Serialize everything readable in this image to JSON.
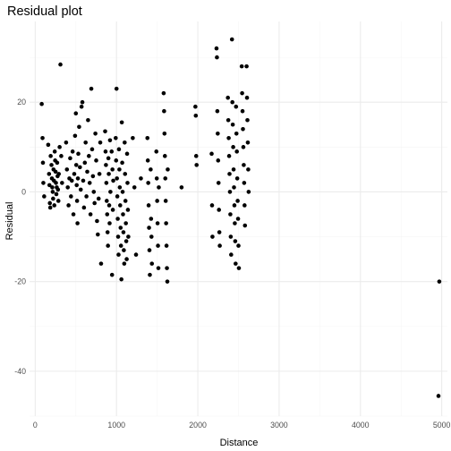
{
  "chart_data": {
    "type": "scatter",
    "title": "Residual plot",
    "xlabel": "Distance",
    "ylabel": "Residual",
    "xlim": [
      -70,
      5070
    ],
    "ylim": [
      -50,
      38
    ],
    "xticks": [
      0,
      1000,
      2000,
      3000,
      4000,
      5000
    ],
    "yticks": [
      -40,
      -20,
      0,
      20
    ],
    "xtick_labels": [
      "0",
      "1000",
      "2000",
      "3000",
      "4000",
      "5000"
    ],
    "ytick_labels": [
      "-40",
      "-20",
      "0",
      "20"
    ],
    "grid": true,
    "legend": "none",
    "point_color": "#000000",
    "series": [
      {
        "points": [
          [
            80,
            19.6
          ],
          [
            90,
            12
          ],
          [
            95,
            6.5
          ],
          [
            100,
            2
          ],
          [
            110,
            -1
          ],
          [
            160,
            10.5
          ],
          [
            170,
            4
          ],
          [
            175,
            1.5
          ],
          [
            180,
            -2.5
          ],
          [
            185,
            -3.5
          ],
          [
            190,
            8
          ],
          [
            200,
            6
          ],
          [
            205,
            3
          ],
          [
            210,
            1
          ],
          [
            215,
            0
          ],
          [
            220,
            -1.5
          ],
          [
            225,
            5
          ],
          [
            230,
            2.5
          ],
          [
            235,
            -3
          ],
          [
            240,
            9
          ],
          [
            245,
            7
          ],
          [
            250,
            4.5
          ],
          [
            255,
            2
          ],
          [
            260,
            -0.5
          ],
          [
            265,
            1
          ],
          [
            270,
            6.5
          ],
          [
            275,
            3.5
          ],
          [
            280,
            0.5
          ],
          [
            285,
            -2
          ],
          [
            290,
            4
          ],
          [
            300,
            10
          ],
          [
            310,
            28.4
          ],
          [
            320,
            8
          ],
          [
            330,
            2
          ],
          [
            380,
            11
          ],
          [
            390,
            5
          ],
          [
            400,
            1
          ],
          [
            410,
            -3
          ],
          [
            420,
            3
          ],
          [
            430,
            7.5
          ],
          [
            440,
            -1
          ],
          [
            450,
            2.5
          ],
          [
            460,
            9
          ],
          [
            470,
            -5
          ],
          [
            480,
            4
          ],
          [
            490,
            12.5
          ],
          [
            500,
            17.5
          ],
          [
            505,
            6
          ],
          [
            510,
            1.5
          ],
          [
            515,
            -2
          ],
          [
            520,
            -7
          ],
          [
            525,
            3
          ],
          [
            530,
            8.5
          ],
          [
            540,
            14.5
          ],
          [
            550,
            5.5
          ],
          [
            560,
            0.5
          ],
          [
            570,
            19
          ],
          [
            580,
            20
          ],
          [
            590,
            2.5
          ],
          [
            600,
            -3.5
          ],
          [
            610,
            6.5
          ],
          [
            620,
            11
          ],
          [
            630,
            -1
          ],
          [
            640,
            4.5
          ],
          [
            650,
            16
          ],
          [
            660,
            8
          ],
          [
            670,
            2
          ],
          [
            680,
            -5
          ],
          [
            690,
            23
          ],
          [
            700,
            9.5
          ],
          [
            710,
            3.5
          ],
          [
            720,
            0
          ],
          [
            730,
            -2.5
          ],
          [
            740,
            13
          ],
          [
            750,
            7
          ],
          [
            760,
            -6.5
          ],
          [
            770,
            -9.5
          ],
          [
            780,
            -1.5
          ],
          [
            790,
            4
          ],
          [
            800,
            11
          ],
          [
            810,
            -16
          ],
          [
            860,
            13.5
          ],
          [
            865,
            9
          ],
          [
            870,
            6
          ],
          [
            875,
            2
          ],
          [
            880,
            -2
          ],
          [
            885,
            -5
          ],
          [
            890,
            -9
          ],
          [
            895,
            -12
          ],
          [
            900,
            7.5
          ],
          [
            905,
            4
          ],
          [
            910,
            -3
          ],
          [
            915,
            -7
          ],
          [
            920,
            11.5
          ],
          [
            925,
            0
          ],
          [
            940,
            9
          ],
          [
            945,
            -18.5
          ],
          [
            950,
            5
          ],
          [
            955,
            -4
          ],
          [
            960,
            2.5
          ],
          [
            990,
            12
          ],
          [
            995,
            7
          ],
          [
            1000,
            23
          ],
          [
            1005,
            3
          ],
          [
            1010,
            -1
          ],
          [
            1015,
            -6
          ],
          [
            1020,
            -10
          ],
          [
            1025,
            -14
          ],
          [
            1030,
            9.5
          ],
          [
            1035,
            5
          ],
          [
            1040,
            1
          ],
          [
            1045,
            -3
          ],
          [
            1050,
            -8
          ],
          [
            1055,
            -12
          ],
          [
            1060,
            -19.5
          ],
          [
            1065,
            15.5
          ],
          [
            1070,
            6.5
          ],
          [
            1075,
            0
          ],
          [
            1080,
            -5
          ],
          [
            1085,
            -9
          ],
          [
            1090,
            -13
          ],
          [
            1095,
            -16
          ],
          [
            1100,
            11
          ],
          [
            1105,
            4
          ],
          [
            1110,
            -2
          ],
          [
            1115,
            -7
          ],
          [
            1120,
            -11
          ],
          [
            1125,
            -15
          ],
          [
            1130,
            8.5
          ],
          [
            1135,
            2
          ],
          [
            1140,
            -4
          ],
          [
            1145,
            -10
          ],
          [
            1200,
            12
          ],
          [
            1220,
            1
          ],
          [
            1240,
            -14
          ],
          [
            1300,
            3
          ],
          [
            1380,
            12
          ],
          [
            1385,
            7
          ],
          [
            1390,
            2
          ],
          [
            1395,
            -3
          ],
          [
            1400,
            -8
          ],
          [
            1405,
            -13
          ],
          [
            1410,
            -18.5
          ],
          [
            1420,
            5
          ],
          [
            1425,
            -6
          ],
          [
            1430,
            -10
          ],
          [
            1435,
            -16
          ],
          [
            1490,
            9
          ],
          [
            1495,
            3
          ],
          [
            1500,
            -2
          ],
          [
            1505,
            -7
          ],
          [
            1510,
            -12
          ],
          [
            1515,
            -17
          ],
          [
            1520,
            1
          ],
          [
            1580,
            22
          ],
          [
            1585,
            18
          ],
          [
            1590,
            13
          ],
          [
            1595,
            8
          ],
          [
            1600,
            3
          ],
          [
            1605,
            -2
          ],
          [
            1610,
            -7
          ],
          [
            1615,
            -12
          ],
          [
            1620,
            -17
          ],
          [
            1625,
            -20
          ],
          [
            1630,
            5
          ],
          [
            1800,
            1
          ],
          [
            1970,
            19
          ],
          [
            1975,
            17
          ],
          [
            1980,
            8
          ],
          [
            1985,
            6
          ],
          [
            2170,
            8.5
          ],
          [
            2175,
            -3
          ],
          [
            2180,
            -10
          ],
          [
            2230,
            32
          ],
          [
            2235,
            30
          ],
          [
            2240,
            18
          ],
          [
            2245,
            13
          ],
          [
            2250,
            7
          ],
          [
            2255,
            2
          ],
          [
            2260,
            -4
          ],
          [
            2265,
            -9
          ],
          [
            2270,
            -12
          ],
          [
            2370,
            21
          ],
          [
            2375,
            16
          ],
          [
            2380,
            12
          ],
          [
            2385,
            8
          ],
          [
            2390,
            4
          ],
          [
            2395,
            0
          ],
          [
            2400,
            -5
          ],
          [
            2405,
            -10
          ],
          [
            2410,
            -14
          ],
          [
            2420,
            34
          ],
          [
            2425,
            20
          ],
          [
            2430,
            15
          ],
          [
            2435,
            10
          ],
          [
            2440,
            5
          ],
          [
            2445,
            1
          ],
          [
            2450,
            -3
          ],
          [
            2455,
            -7
          ],
          [
            2460,
            -11
          ],
          [
            2465,
            -16
          ],
          [
            2470,
            19
          ],
          [
            2475,
            13
          ],
          [
            2480,
            9
          ],
          [
            2485,
            3
          ],
          [
            2490,
            -2
          ],
          [
            2495,
            -6
          ],
          [
            2500,
            -12
          ],
          [
            2505,
            -17
          ],
          [
            2540,
            28
          ],
          [
            2545,
            22
          ],
          [
            2550,
            18
          ],
          [
            2555,
            14
          ],
          [
            2560,
            10
          ],
          [
            2565,
            6
          ],
          [
            2570,
            2
          ],
          [
            2575,
            -3
          ],
          [
            2580,
            -7.5
          ],
          [
            2600,
            28
          ],
          [
            2605,
            21
          ],
          [
            2610,
            16
          ],
          [
            2615,
            11
          ],
          [
            2620,
            5
          ],
          [
            2625,
            0
          ],
          [
            4970,
            -20
          ],
          [
            4960,
            -45.5
          ]
        ]
      }
    ]
  }
}
